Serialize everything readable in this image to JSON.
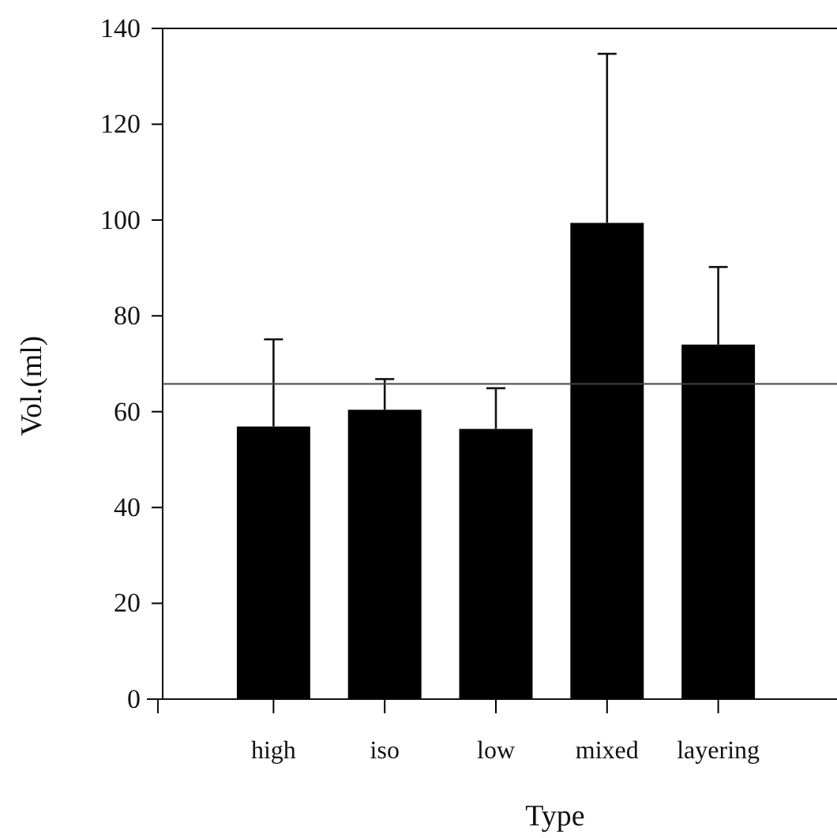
{
  "chart_data": {
    "type": "bar",
    "xlabel": "Type",
    "ylabel": "Vol.(ml)",
    "categories": [
      "high",
      "iso",
      "low",
      "mixed",
      "layering"
    ],
    "values": [
      56.9,
      60.4,
      56.4,
      99.4,
      74.0
    ],
    "errors": [
      [
        56.9,
        75.1
      ],
      [
        60.4,
        66.8
      ],
      [
        56.4,
        64.9
      ],
      [
        99.4,
        134.7
      ],
      [
        74.0,
        90.2
      ]
    ],
    "color": "#000000",
    "ylim": [
      0,
      140
    ],
    "yticks": [
      0,
      20,
      40,
      60,
      80,
      100,
      120,
      140
    ],
    "ref_lines": [
      {
        "axis": "y",
        "value": 65.8,
        "color": "#444444"
      }
    ]
  }
}
